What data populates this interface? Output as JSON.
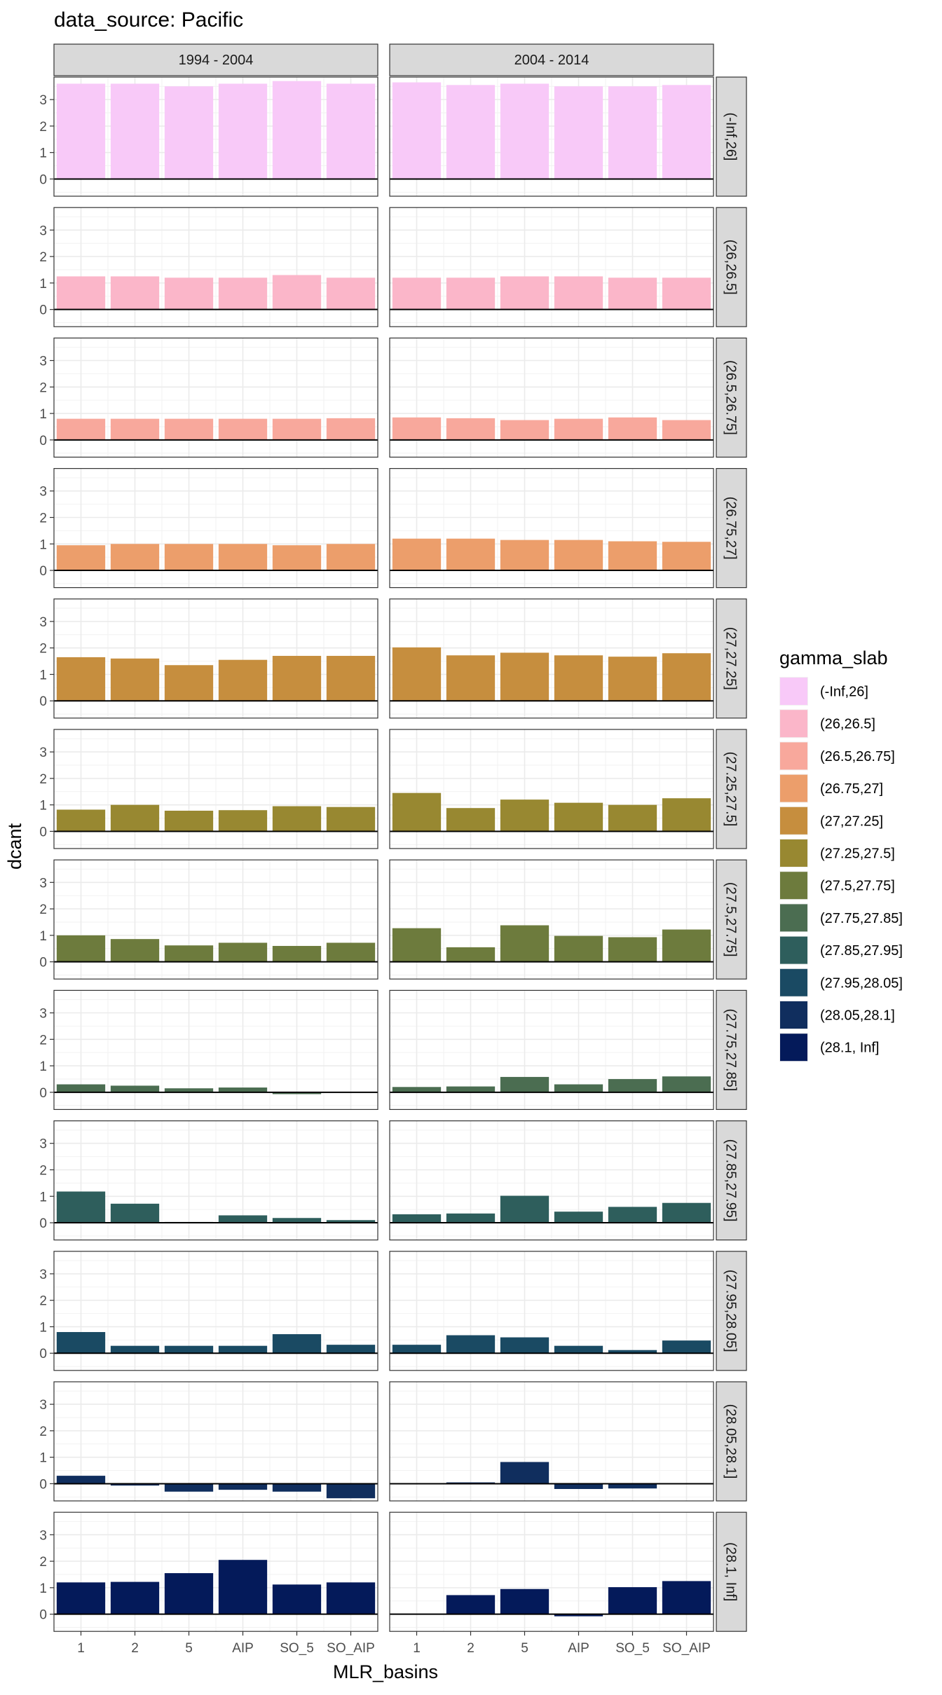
{
  "chart_data": {
    "type": "bar",
    "title": "data_source: Pacific",
    "xlabel": "MLR_basins",
    "ylabel": "dcant",
    "categories": [
      "1",
      "2",
      "5",
      "AIP",
      "SO_5",
      "SO_AIP"
    ],
    "columns": [
      "1994 - 2004",
      "2004 - 2014"
    ],
    "ylim": [
      -0.65,
      3.85
    ],
    "yticks": [
      0,
      1,
      2,
      3
    ],
    "grid": true,
    "legend": {
      "title": "gamma_slab",
      "placement": "right"
    },
    "panels": [
      {
        "slab": "(-Inf,26]",
        "color": "#F8C9F8",
        "values": [
          [
            3.6,
            3.6,
            3.5,
            3.6,
            3.7,
            3.6
          ],
          [
            3.65,
            3.55,
            3.6,
            3.5,
            3.5,
            3.55
          ]
        ]
      },
      {
        "slab": "(26,26.5]",
        "color": "#FBB6C9",
        "values": [
          [
            1.25,
            1.25,
            1.2,
            1.2,
            1.3,
            1.2
          ],
          [
            1.2,
            1.2,
            1.25,
            1.25,
            1.2,
            1.2
          ]
        ]
      },
      {
        "slab": "(26.5,26.75]",
        "color": "#F8A89C",
        "values": [
          [
            0.8,
            0.8,
            0.8,
            0.8,
            0.8,
            0.82
          ],
          [
            0.85,
            0.82,
            0.75,
            0.8,
            0.85,
            0.75
          ]
        ]
      },
      {
        "slab": "(26.75,27]",
        "color": "#EC9E6B",
        "values": [
          [
            0.95,
            1.0,
            1.0,
            1.0,
            0.95,
            1.0
          ],
          [
            1.2,
            1.2,
            1.15,
            1.15,
            1.1,
            1.08
          ]
        ]
      },
      {
        "slab": "(27,27.25]",
        "color": "#C68E3E",
        "values": [
          [
            1.65,
            1.6,
            1.35,
            1.55,
            1.7,
            1.7
          ],
          [
            2.02,
            1.72,
            1.82,
            1.72,
            1.67,
            1.8
          ]
        ]
      },
      {
        "slab": "(27.25,27.5]",
        "color": "#988831",
        "values": [
          [
            0.82,
            1.0,
            0.78,
            0.8,
            0.95,
            0.92
          ],
          [
            1.45,
            0.88,
            1.2,
            1.08,
            1.0,
            1.25
          ]
        ]
      },
      {
        "slab": "(27.5,27.75]",
        "color": "#6D7B3D",
        "values": [
          [
            1.0,
            0.86,
            0.62,
            0.72,
            0.6,
            0.72
          ],
          [
            1.27,
            0.55,
            1.38,
            0.98,
            0.93,
            1.22
          ]
        ]
      },
      {
        "slab": "(27.75,27.85]",
        "color": "#4B6D51",
        "values": [
          [
            0.3,
            0.25,
            0.15,
            0.18,
            -0.07,
            0.01
          ],
          [
            0.2,
            0.22,
            0.58,
            0.3,
            0.5,
            0.6
          ]
        ]
      },
      {
        "slab": "(27.85,27.95]",
        "color": "#2E5E5C",
        "values": [
          [
            1.18,
            0.72,
            0.03,
            0.28,
            0.18,
            0.1
          ],
          [
            0.32,
            0.35,
            1.02,
            0.42,
            0.6,
            0.75
          ]
        ]
      },
      {
        "slab": "(27.95,28.05]",
        "color": "#1A4A63",
        "values": [
          [
            0.8,
            0.28,
            0.28,
            0.28,
            0.72,
            0.32
          ],
          [
            0.32,
            0.68,
            0.6,
            0.28,
            0.12,
            0.48
          ]
        ]
      },
      {
        "slab": "(28.05,28.1]",
        "color": "#102E5E",
        "values": [
          [
            0.3,
            -0.07,
            -0.3,
            -0.23,
            -0.3,
            -0.55
          ],
          [
            0.0,
            0.05,
            0.82,
            -0.2,
            -0.18,
            0.0
          ]
        ]
      },
      {
        "slab": "(28.1, Inf]",
        "color": "#041A5A",
        "values": [
          [
            1.2,
            1.22,
            1.55,
            2.05,
            1.12,
            1.2
          ],
          [
            0.0,
            0.72,
            0.95,
            -0.08,
            1.02,
            1.25
          ]
        ]
      }
    ]
  }
}
